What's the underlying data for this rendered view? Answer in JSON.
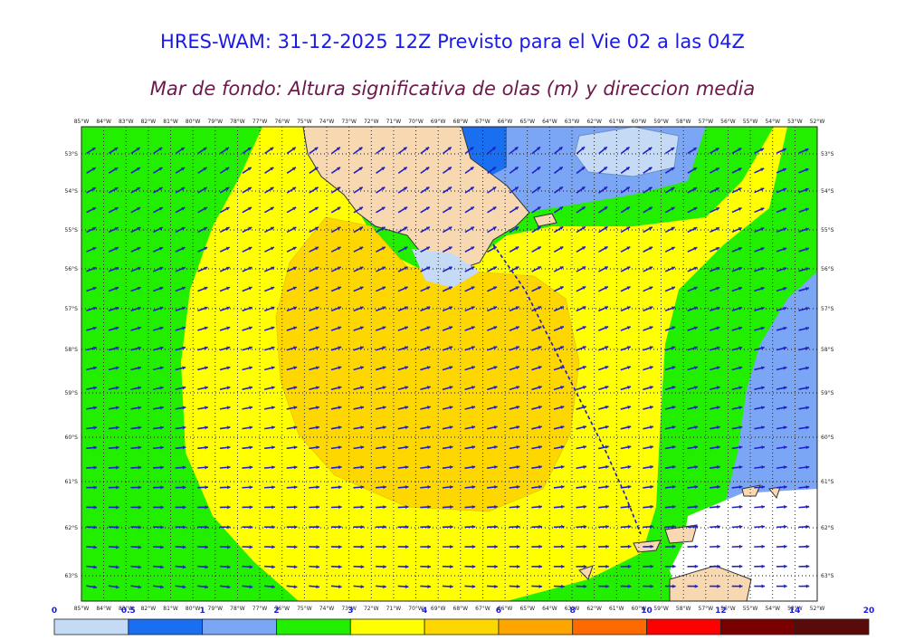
{
  "header": {
    "title": "HRES-WAM: 31-12-2025 12Z Previsto para el Vie 02 a las 04Z",
    "subtitle": "Mar de fondo: Altura significativa de olas (m) y direccion media"
  },
  "map": {
    "longitudes_top": [
      "85°W",
      "84°W",
      "83°W",
      "82°W",
      "81°W",
      "80°W",
      "79°W",
      "78°W",
      "77°W",
      "76°W",
      "75°W",
      "74°W",
      "73°W",
      "72°W",
      "71°W",
      "70°W",
      "69°W",
      "68°W",
      "67°W",
      "66°W",
      "65°W",
      "64°W",
      "63°W",
      "62°W",
      "61°W",
      "60°W",
      "59°W",
      "58°W",
      "57°W",
      "56°W",
      "55°W",
      "54°W",
      "53°W",
      "52°W"
    ],
    "latitudes": [
      "53°S",
      "54°S",
      "55°S",
      "56°S",
      "57°S",
      "58°S",
      "59°S",
      "60°S",
      "61°S",
      "62°S",
      "63°S"
    ],
    "colors": {
      "ocean_green": "#22ee00",
      "yellow": "#ffff00",
      "gold": "#ffd700",
      "light_blue": "#c4daf5",
      "mid_blue": "#7aa6f5",
      "deep_blue": "#1a6ef0",
      "land": "#f8d8b0",
      "arrow": "#2020c8"
    }
  },
  "legend": {
    "tick_labels": [
      "0",
      "0.5",
      "1",
      "2",
      "3",
      "4",
      "6",
      "8",
      "10",
      "12",
      "14",
      "20"
    ],
    "colors": [
      "#c4daf5",
      "#1a6ef0",
      "#7aa6f5",
      "#22ee00",
      "#ffff00",
      "#ffd700",
      "#ffa500",
      "#ff6a00",
      "#ff0000",
      "#7a0000",
      "#5a0a0a",
      "#3a3a3a"
    ]
  }
}
